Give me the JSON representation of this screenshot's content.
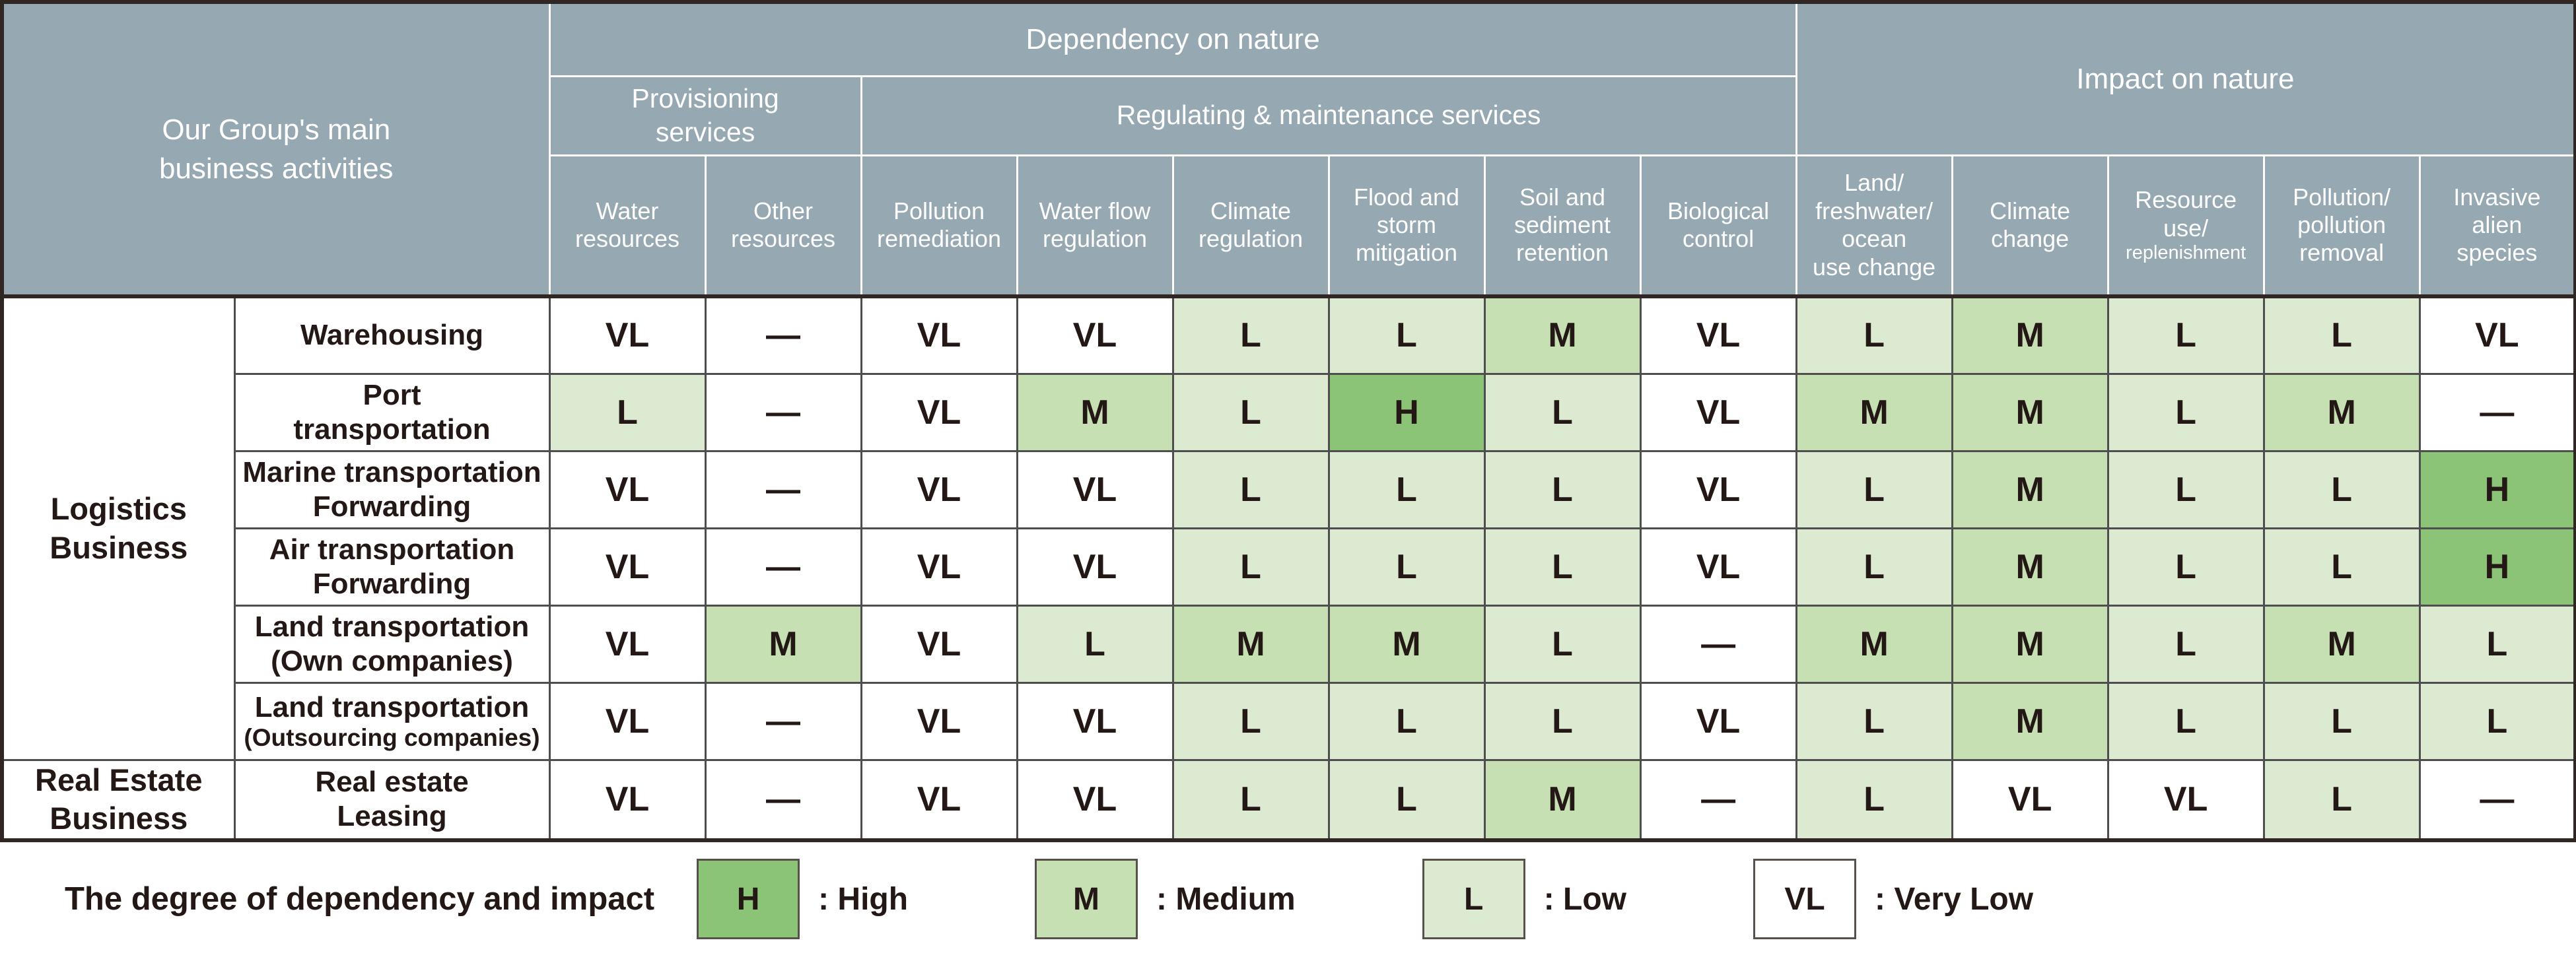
{
  "colors": {
    "header_bg": "#96a8b1",
    "header_text": "#ffffff",
    "body_text": "#231815",
    "grid_dark": "#302725",
    "high": "#8cc477",
    "medium": "#c6dfb3",
    "low": "#dcead2",
    "very_low": "#ffffff"
  },
  "header": {
    "corner": "Our Group's main\nbusiness activities",
    "dependency_title": "Dependency on nature",
    "provisioning_title": "Provisioning\nservices",
    "regulating_title": "Regulating & maintenance services",
    "impact_title": "Impact on nature",
    "columns_display": [
      "Water\nresources",
      "Other\nresources",
      "Pollution\nremediation",
      "Water flow\nregulation",
      "Climate\nregulation",
      "Flood and\nstorm\nmitigation",
      "Soil and\nsediment\nretention",
      "Biological\ncontrol",
      "Land/\nfreshwater/\nocean\nuse change",
      "Climate\nchange",
      "Resource\nuse/",
      "Pollution/\npollution\nremoval",
      "Invasive\nalien\nspecies"
    ],
    "resource_small": "replenishment"
  },
  "chart_data": {
    "type": "heatmap",
    "column_groups": [
      {
        "label": "Dependency on nature",
        "children": [
          {
            "label": "Provisioning services",
            "columns": [
              0,
              1
            ]
          },
          {
            "label": "Regulating & maintenance services",
            "columns": [
              2,
              3,
              4,
              5,
              6,
              7
            ]
          }
        ]
      },
      {
        "label": "Impact on nature",
        "columns": [
          8,
          9,
          10,
          11,
          12
        ]
      }
    ],
    "columns": [
      "Water resources",
      "Other resources",
      "Pollution remediation",
      "Water flow regulation",
      "Climate regulation",
      "Flood and storm mitigation",
      "Soil and sediment retention",
      "Biological control",
      "Land/freshwater/ocean use change",
      "Climate change",
      "Resource use/replenishment",
      "Pollution/pollution removal",
      "Invasive alien species"
    ],
    "row_groups": [
      {
        "label": "Logistics\nBusiness",
        "rows": [
          0,
          1,
          2,
          3,
          4,
          5
        ]
      },
      {
        "label": "Real Estate\nBusiness",
        "rows": [
          6
        ]
      }
    ],
    "rows": [
      {
        "name": "Warehousing"
      },
      {
        "name": "Port\ntransportation"
      },
      {
        "name": "Marine transportation\nForwarding"
      },
      {
        "name": "Air transportation\nForwarding"
      },
      {
        "name": "Land transportation\n(Own companies)"
      },
      {
        "name": "Land transportation",
        "name_small": "(Outsourcing companies)"
      },
      {
        "name": "Real estate\nLeasing"
      }
    ],
    "values": [
      [
        "VL",
        "—",
        "VL",
        "VL",
        "L",
        "L",
        "M",
        "VL",
        "L",
        "M",
        "L",
        "L",
        "VL"
      ],
      [
        "L",
        "—",
        "VL",
        "M",
        "L",
        "H",
        "L",
        "VL",
        "M",
        "M",
        "L",
        "M",
        "—"
      ],
      [
        "VL",
        "—",
        "VL",
        "VL",
        "L",
        "L",
        "L",
        "VL",
        "L",
        "M",
        "L",
        "L",
        "H"
      ],
      [
        "VL",
        "—",
        "VL",
        "VL",
        "L",
        "L",
        "L",
        "VL",
        "L",
        "M",
        "L",
        "L",
        "H"
      ],
      [
        "VL",
        "M",
        "VL",
        "L",
        "M",
        "M",
        "L",
        "—",
        "M",
        "M",
        "L",
        "M",
        "L"
      ],
      [
        "VL",
        "—",
        "VL",
        "VL",
        "L",
        "L",
        "L",
        "VL",
        "L",
        "M",
        "L",
        "L",
        "L"
      ],
      [
        "VL",
        "—",
        "VL",
        "VL",
        "L",
        "L",
        "M",
        "—",
        "L",
        "VL",
        "VL",
        "L",
        "—"
      ]
    ],
    "value_scale": [
      "H",
      "M",
      "L",
      "VL",
      "—"
    ]
  },
  "legend": {
    "title": "The degree of dependency and impact",
    "items": [
      {
        "code": "H",
        "label": ": High"
      },
      {
        "code": "M",
        "label": ": Medium"
      },
      {
        "code": "L",
        "label": ": Low"
      },
      {
        "code": "VL",
        "label": ": Very Low"
      }
    ]
  }
}
